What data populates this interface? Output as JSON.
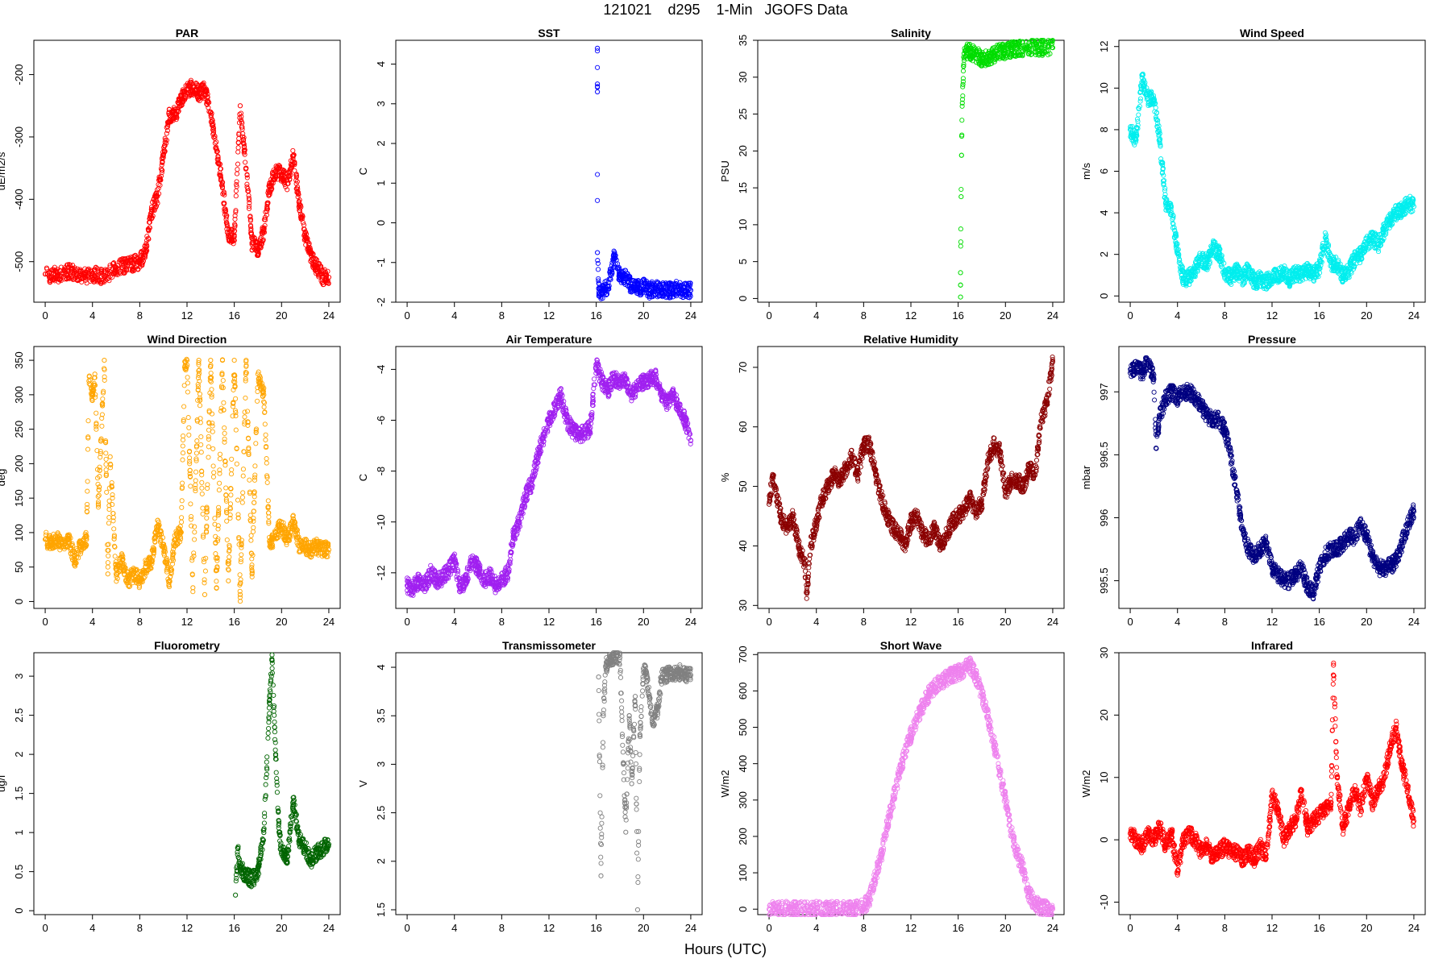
{
  "figure": {
    "title": "121021    d295    1-Min   JGOFS Data",
    "xlabel": "Hours (UTC)"
  },
  "chart_data": [
    {
      "type": "scatter",
      "title": "PAR",
      "ylabel": "uE/m2/s",
      "color": "#ff0000",
      "xlim": [
        0,
        24
      ],
      "ylim": [
        -565,
        -145
      ],
      "xticks": [
        0,
        4,
        8,
        12,
        16,
        20,
        24
      ],
      "yticks": [
        -500,
        -400,
        -300,
        -200
      ],
      "x": [
        0,
        1,
        2,
        3,
        4,
        5,
        6,
        7,
        8,
        8.5,
        9,
        9.5,
        10,
        10.5,
        11,
        11.5,
        12,
        12.5,
        13,
        13.5,
        14,
        14.5,
        15,
        15.5,
        16,
        16.5,
        17,
        17.5,
        18,
        18.5,
        19,
        19.5,
        20,
        20.5,
        21,
        21.5,
        22,
        22.5,
        23,
        23.5,
        24
      ],
      "y": [
        -520,
        -522,
        -515,
        -525,
        -520,
        -525,
        -510,
        -505,
        -500,
        -485,
        -420,
        -395,
        -330,
        -265,
        -265,
        -240,
        -225,
        -220,
        -230,
        -225,
        -260,
        -320,
        -380,
        -460,
        -460,
        -250,
        -350,
        -470,
        -480,
        -450,
        -380,
        -355,
        -360,
        -375,
        -330,
        -410,
        -460,
        -490,
        -510,
        -525,
        -525
      ]
    },
    {
      "type": "scatter",
      "title": "SST",
      "ylabel": "C",
      "color": "#0000ff",
      "xlim": [
        0,
        24
      ],
      "ylim": [
        -2,
        4.6
      ],
      "xticks": [
        0,
        4,
        8,
        12,
        16,
        20,
        24
      ],
      "yticks": [
        -2,
        -1,
        0,
        1,
        2,
        3,
        4
      ],
      "x": [
        16.1,
        16.1,
        16.1,
        16.1,
        16.2,
        16.5,
        17,
        17.5,
        18,
        18.5,
        19,
        19.5,
        20,
        20.5,
        21,
        21.5,
        22,
        22.5,
        23,
        23.5,
        24
      ],
      "y": [
        4.4,
        3.5,
        3.3,
        -0.75,
        -1.65,
        -1.75,
        -1.6,
        -0.9,
        -1.3,
        -1.4,
        -1.6,
        -1.65,
        -1.6,
        -1.7,
        -1.65,
        -1.7,
        -1.7,
        -1.7,
        -1.65,
        -1.7,
        -1.7
      ]
    },
    {
      "type": "scatter",
      "title": "Salinity",
      "ylabel": "PSU",
      "color": "#00dd00",
      "xlim": [
        0,
        24
      ],
      "ylim": [
        -0.5,
        35
      ],
      "xticks": [
        0,
        4,
        8,
        12,
        16,
        20,
        24
      ],
      "yticks": [
        0,
        5,
        10,
        15,
        20,
        25,
        30,
        35
      ],
      "x": [
        16.2,
        16.2,
        16.25,
        16.3,
        16.35,
        16.4,
        16.45,
        16.5,
        16.6,
        17,
        17.5,
        18,
        18.5,
        19,
        19.5,
        20,
        20.5,
        21,
        22,
        23,
        24
      ],
      "y": [
        0.2,
        3.5,
        13.8,
        22,
        26.5,
        29,
        31.5,
        33.2,
        33.5,
        33.5,
        33,
        32.5,
        32.6,
        33,
        33.5,
        33.5,
        33.8,
        33.9,
        34,
        34,
        34
      ]
    },
    {
      "type": "scatter",
      "title": "Wind Speed",
      "ylabel": "m/s",
      "color": "#00eeee",
      "xlim": [
        0,
        24
      ],
      "ylim": [
        -0.3,
        12.3
      ],
      "xticks": [
        0,
        4,
        8,
        12,
        16,
        20,
        24
      ],
      "yticks": [
        0,
        2,
        4,
        6,
        8,
        10,
        12
      ],
      "x": [
        0,
        0.5,
        1,
        1.5,
        2,
        2.5,
        3,
        3.5,
        4,
        4.5,
        5,
        5.5,
        6,
        6.5,
        7,
        7.5,
        8,
        8.5,
        9,
        9.5,
        10,
        10.5,
        11,
        11.5,
        12,
        12.5,
        13,
        13.5,
        14,
        14.5,
        15,
        15.5,
        16,
        16.5,
        17,
        17.5,
        18,
        18.5,
        19,
        19.5,
        20,
        20.5,
        21,
        21.5,
        22,
        22.5,
        23,
        23.5,
        24
      ],
      "y": [
        8,
        7.5,
        10.5,
        9.5,
        9.5,
        7.5,
        4.5,
        4,
        2.2,
        0.8,
        0.9,
        1.3,
        1.8,
        1.6,
        2.3,
        2.1,
        1.2,
        0.9,
        1.2,
        0.8,
        1.3,
        0.7,
        0.8,
        0.7,
        0.9,
        1,
        1.2,
        0.8,
        1.1,
        1,
        1.2,
        1,
        1.3,
        2.8,
        1.6,
        1.5,
        1,
        1.2,
        1.8,
        2,
        2.5,
        2.8,
        2.5,
        3.2,
        3.6,
        4,
        4.1,
        4.5,
        4.3
      ]
    },
    {
      "type": "scatter",
      "title": "Wind Direction",
      "ylabel": "deg",
      "color": "#ffa500",
      "xlim": [
        0,
        24
      ],
      "ylim": [
        -10,
        370
      ],
      "xticks": [
        0,
        4,
        8,
        12,
        16,
        20,
        24
      ],
      "yticks": [
        0,
        50,
        100,
        150,
        200,
        250,
        300,
        350
      ],
      "x": [
        0,
        0.5,
        1,
        1.5,
        2,
        2.5,
        3,
        3.5,
        3.7,
        4,
        4.2,
        4.5,
        5,
        5.3,
        5.5,
        6,
        6.5,
        7,
        7.5,
        8,
        8.5,
        9,
        9.5,
        10,
        10.5,
        11,
        11.5,
        11.8,
        12,
        12.5,
        13,
        13.5,
        14,
        14.5,
        15,
        15.5,
        16,
        16.5,
        17,
        17.5,
        18,
        18.5,
        19,
        19.5,
        20,
        20.5,
        21,
        21.5,
        22,
        22.5,
        23,
        23.5,
        24
      ],
      "y": [
        90,
        85,
        90,
        80,
        90,
        60,
        80,
        90,
        320,
        300,
        330,
        140,
        350,
        40,
        210,
        40,
        60,
        30,
        40,
        30,
        50,
        60,
        110,
        80,
        30,
        90,
        100,
        340,
        350,
        20,
        350,
        10,
        350,
        20,
        350,
        30,
        350,
        10,
        350,
        40,
        330,
        300,
        80,
        100,
        110,
        90,
        120,
        80,
        80,
        75,
        80,
        75,
        75
      ]
    },
    {
      "type": "scatter",
      "title": "Air Temperature",
      "ylabel": "C",
      "color": "#a020f0",
      "xlim": [
        0,
        24
      ],
      "ylim": [
        -13.4,
        -3.1
      ],
      "xticks": [
        0,
        4,
        8,
        12,
        16,
        20,
        24
      ],
      "yticks": [
        -12,
        -10,
        -8,
        -6,
        -4
      ],
      "x": [
        0,
        0.5,
        1,
        1.5,
        2,
        2.5,
        3,
        3.5,
        4,
        4.5,
        5,
        5.5,
        6,
        6.5,
        7,
        7.5,
        8,
        8.5,
        9,
        9.5,
        10,
        10.5,
        11,
        11.5,
        12,
        12.5,
        13,
        13.5,
        14,
        14.5,
        15,
        15.5,
        16,
        16.5,
        17,
        17.5,
        18,
        18.5,
        19,
        19.5,
        20,
        20.5,
        21,
        21.5,
        22,
        22.5,
        23,
        23.5,
        24
      ],
      "y": [
        -12.5,
        -12.6,
        -12.3,
        -12.5,
        -12,
        -12.3,
        -12.2,
        -11.9,
        -11.5,
        -12.6,
        -12.2,
        -11.5,
        -11.8,
        -12.3,
        -12.1,
        -12.5,
        -12.3,
        -12,
        -10.5,
        -10,
        -9,
        -8.5,
        -7.5,
        -6.7,
        -6,
        -5.5,
        -5,
        -6,
        -6.4,
        -6.6,
        -6.5,
        -6.3,
        -3.8,
        -4.5,
        -4.8,
        -4.3,
        -4.6,
        -4.4,
        -5,
        -4.7,
        -4.5,
        -4.4,
        -4.3,
        -4.9,
        -5.3,
        -5,
        -5.5,
        -6,
        -6.8
      ]
    },
    {
      "type": "scatter",
      "title": "Relative Humidity",
      "ylabel": "%",
      "color": "#8b0000",
      "xlim": [
        0,
        24
      ],
      "ylim": [
        29.5,
        73.5
      ],
      "xticks": [
        0,
        4,
        8,
        12,
        16,
        20,
        24
      ],
      "yticks": [
        30,
        40,
        50,
        60,
        70
      ],
      "x": [
        0,
        0.3,
        0.5,
        1,
        1.5,
        2,
        2.5,
        3,
        3.2,
        3.5,
        4,
        4.5,
        5,
        5.5,
        6,
        6.5,
        7,
        7.5,
        8,
        8.5,
        9,
        9.5,
        10,
        10.5,
        11,
        11.5,
        12,
        12.5,
        13,
        13.5,
        14,
        14.5,
        15,
        15.5,
        16,
        16.5,
        17,
        17.5,
        18,
        18.5,
        19,
        19.5,
        20,
        20.5,
        21,
        21.5,
        22,
        22.5,
        23,
        23.5,
        24
      ],
      "y": [
        47,
        52,
        50,
        45,
        43,
        45,
        40,
        37,
        32,
        40,
        44,
        48,
        50,
        52,
        51,
        53,
        55,
        52,
        57,
        57,
        52,
        48,
        45,
        43,
        42,
        40,
        44,
        45,
        42,
        41,
        43,
        40,
        42,
        44,
        45,
        46,
        48,
        46,
        47,
        54,
        57,
        56,
        49,
        51,
        51,
        50,
        53,
        52,
        61,
        64,
        71
      ]
    },
    {
      "type": "scatter",
      "title": "Pressure",
      "ylabel": "mbar",
      "color": "#000080",
      "xlim": [
        0,
        24
      ],
      "ylim": [
        995.28,
        997.36
      ],
      "xticks": [
        0,
        4,
        8,
        12,
        16,
        20,
        24
      ],
      "yticks": [
        995.5,
        996.0,
        996.5,
        997.0
      ],
      "x": [
        0,
        0.5,
        1,
        1.5,
        2,
        2.2,
        2.5,
        3,
        3.5,
        4,
        4.5,
        5,
        5.5,
        6,
        6.5,
        7,
        7.5,
        8,
        8.5,
        9,
        9.5,
        10,
        10.5,
        11,
        11.5,
        12,
        12.5,
        13,
        13.5,
        14,
        14.5,
        15,
        15.5,
        16,
        16.5,
        17,
        17.5,
        18,
        18.5,
        19,
        19.5,
        20,
        20.5,
        21,
        21.5,
        22,
        22.5,
        23,
        23.5,
        24
      ],
      "y": [
        997.15,
        997.2,
        997.15,
        997.25,
        997.1,
        996.55,
        996.8,
        996.95,
        997,
        996.95,
        997,
        997,
        996.95,
        996.9,
        996.8,
        996.78,
        996.78,
        996.7,
        996.5,
        996.2,
        995.9,
        995.75,
        995.7,
        995.75,
        995.8,
        995.6,
        995.55,
        995.5,
        995.5,
        995.55,
        995.6,
        995.45,
        995.4,
        995.6,
        995.7,
        995.75,
        995.75,
        995.8,
        995.85,
        995.85,
        995.95,
        995.85,
        995.7,
        995.6,
        995.6,
        995.62,
        995.65,
        995.8,
        995.95,
        996.05
      ]
    },
    {
      "type": "scatter",
      "title": "Fluorometry",
      "ylabel": "ug/l",
      "color": "#006400",
      "xlim": [
        0,
        24
      ],
      "ylim": [
        -0.05,
        3.3
      ],
      "xticks": [
        0,
        4,
        8,
        12,
        16,
        20,
        24
      ],
      "yticks": [
        0.0,
        0.5,
        1.0,
        1.5,
        2.0,
        2.5,
        3.0
      ],
      "x": [
        16.1,
        16.3,
        16.5,
        17,
        17.5,
        18,
        18.5,
        19,
        19.2,
        19.5,
        19.8,
        20,
        20.5,
        21,
        21.5,
        22,
        22.5,
        23,
        23.5,
        24
      ],
      "y": [
        0.2,
        0.8,
        0.55,
        0.45,
        0.4,
        0.5,
        1.0,
        2.7,
        3.2,
        2.0,
        1.0,
        0.75,
        0.7,
        1.4,
        0.9,
        0.8,
        0.65,
        0.75,
        0.8,
        0.85
      ]
    },
    {
      "type": "scatter",
      "title": "Transmissometer",
      "ylabel": "V",
      "color": "#808080",
      "xlim": [
        0,
        24
      ],
      "ylim": [
        1.45,
        4.15
      ],
      "xticks": [
        0,
        4,
        8,
        12,
        16,
        20,
        24
      ],
      "yticks": [
        1.5,
        2.0,
        2.5,
        3.0,
        3.5,
        4.0
      ],
      "x": [
        16.2,
        16.4,
        16.6,
        16.8,
        17,
        17.2,
        17.5,
        18,
        18.3,
        18.5,
        18.8,
        19,
        19.3,
        19.5,
        19.7,
        20,
        20.2,
        20.5,
        20.8,
        21,
        21.3,
        21.5,
        22,
        22.5,
        23,
        23.5,
        24
      ],
      "y": [
        3.9,
        1.85,
        3.5,
        4.0,
        4.08,
        4.1,
        4.1,
        4.1,
        3.0,
        2.3,
        3.5,
        2.8,
        3.7,
        1.5,
        3.3,
        3.95,
        3.95,
        3.7,
        3.4,
        3.5,
        3.6,
        3.9,
        3.92,
        3.93,
        3.95,
        3.93,
        3.92
      ]
    },
    {
      "type": "scatter",
      "title": "Short Wave",
      "ylabel": "W/m2",
      "color": "#ee82ee",
      "xlim": [
        0,
        24
      ],
      "ylim": [
        -15,
        705
      ],
      "xticks": [
        0,
        4,
        8,
        12,
        16,
        20,
        24
      ],
      "yticks": [
        0,
        100,
        200,
        300,
        400,
        500,
        600,
        700
      ],
      "x": [
        0,
        1,
        2,
        3,
        4,
        5,
        6,
        7,
        8,
        8.5,
        9,
        9.5,
        10,
        10.5,
        11,
        11.5,
        12,
        12.5,
        13,
        13.5,
        14,
        14.5,
        15,
        15.5,
        16,
        16.5,
        17,
        17.5,
        18,
        18.5,
        19,
        19.5,
        20,
        20.5,
        21,
        21.5,
        22,
        22.5,
        23,
        23.5,
        24
      ],
      "y": [
        0,
        0,
        0,
        0,
        0,
        0,
        0,
        0,
        5,
        30,
        90,
        150,
        230,
        300,
        370,
        430,
        480,
        520,
        560,
        590,
        610,
        625,
        635,
        645,
        650,
        660,
        670,
        640,
        590,
        530,
        460,
        380,
        300,
        210,
        150,
        110,
        40,
        15,
        5,
        0,
        0
      ]
    },
    {
      "type": "scatter",
      "title": "Infrared",
      "ylabel": "W/m2",
      "color": "#ff0000",
      "xlim": [
        0,
        24
      ],
      "ylim": [
        -12,
        30
      ],
      "xticks": [
        0,
        4,
        8,
        12,
        16,
        20,
        24
      ],
      "yticks": [
        -10,
        0,
        10,
        20,
        30
      ],
      "x": [
        0,
        0.5,
        1,
        1.5,
        2,
        2.5,
        3,
        3.5,
        4,
        4.5,
        5,
        5.5,
        6,
        6.5,
        7,
        7.5,
        8,
        8.5,
        9,
        9.5,
        10,
        10.5,
        11,
        11.5,
        12,
        12.5,
        13,
        13.5,
        14,
        14.5,
        15,
        15.5,
        16,
        16.5,
        17,
        17.2,
        17.5,
        18,
        18.5,
        19,
        19.5,
        20,
        20.5,
        21,
        21.5,
        22,
        22.5,
        23,
        23.5,
        24
      ],
      "y": [
        1,
        0,
        -1,
        1,
        0,
        2,
        -1,
        1,
        -5,
        0,
        1,
        0,
        -2,
        -1,
        -3,
        -2,
        -1,
        -2,
        -2,
        -3,
        -2,
        -3,
        -1,
        -3,
        7,
        5,
        0,
        2,
        3,
        8,
        2,
        3,
        4,
        5,
        6,
        28,
        10,
        2,
        5,
        8,
        5,
        10,
        6,
        8,
        10,
        15,
        18,
        12,
        8,
        3
      ]
    }
  ]
}
